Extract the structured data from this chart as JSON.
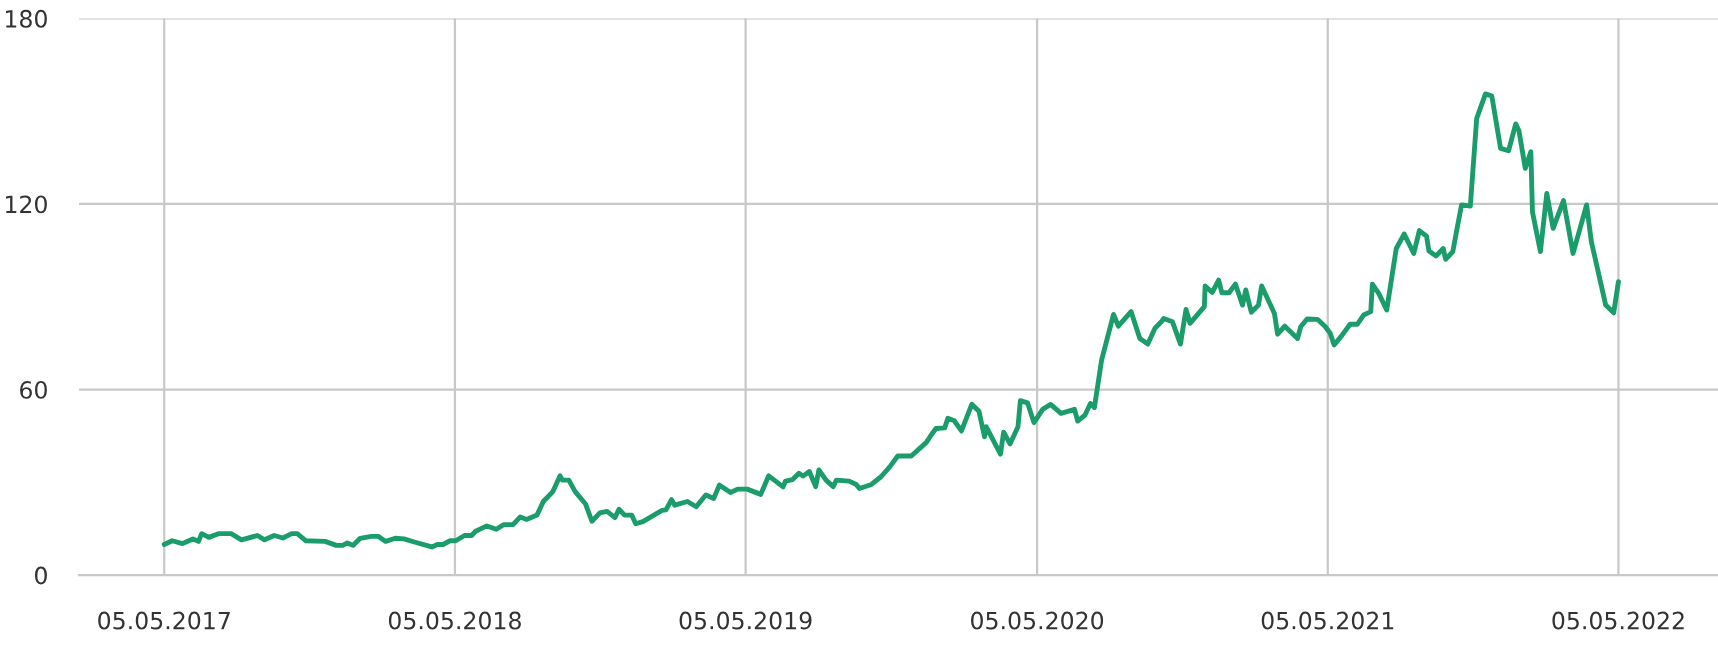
{
  "chart_data": {
    "type": "line",
    "xlim": [
      "2017-01-18",
      "2022-09-07"
    ],
    "ylim": [
      0,
      180
    ],
    "yticks": [
      0,
      60,
      120,
      180
    ],
    "xticks": [
      {
        "value": "2017-05-05",
        "label": "05.05.2017"
      },
      {
        "value": "2018-05-05",
        "label": "05.05.2018"
      },
      {
        "value": "2019-05-05",
        "label": "05.05.2019"
      },
      {
        "value": "2020-05-05",
        "label": "05.05.2020"
      },
      {
        "value": "2021-05-05",
        "label": "05.05.2021"
      },
      {
        "value": "2022-05-05",
        "label": "05.05.2022"
      }
    ],
    "grid": true,
    "marker": "none",
    "line_style": "solid",
    "series": [
      {
        "color": "#1a9c6b",
        "x": [
          "2017-05-05",
          "2017-05-15",
          "2017-05-28",
          "2017-06-10",
          "2017-06-17",
          "2017-06-21",
          "2017-06-30",
          "2017-07-12",
          "2017-07-28",
          "2017-08-10",
          "2017-08-30",
          "2017-09-08",
          "2017-09-20",
          "2017-10-01",
          "2017-10-12",
          "2017-10-19",
          "2017-10-30",
          "2017-11-23",
          "2017-12-07",
          "2017-12-15",
          "2017-12-21",
          "2017-12-28",
          "2018-01-06",
          "2018-01-20",
          "2018-01-29",
          "2018-02-07",
          "2018-02-19",
          "2018-03-02",
          "2018-03-15",
          "2018-04-06",
          "2018-04-13",
          "2018-04-20",
          "2018-04-29",
          "2018-05-06",
          "2018-05-17",
          "2018-05-26",
          "2018-05-31",
          "2018-06-14",
          "2018-06-26",
          "2018-07-05",
          "2018-07-17",
          "2018-07-26",
          "2018-08-03",
          "2018-08-16",
          "2018-08-24",
          "2018-09-05",
          "2018-09-14",
          "2018-09-17",
          "2018-09-25",
          "2018-10-03",
          "2018-10-16",
          "2018-10-24",
          "2018-11-03",
          "2018-11-12",
          "2018-11-22",
          "2018-11-27",
          "2018-12-04",
          "2018-12-13",
          "2018-12-18",
          "2018-12-27",
          "2019-01-20",
          "2019-01-25",
          "2019-02-01",
          "2019-02-05",
          "2019-02-21",
          "2019-03-04",
          "2019-03-16",
          "2019-03-26",
          "2019-04-02",
          "2019-04-16",
          "2019-04-25",
          "2019-05-07",
          "2019-05-24",
          "2019-06-03",
          "2019-06-21",
          "2019-06-24",
          "2019-07-03",
          "2019-07-11",
          "2019-07-16",
          "2019-07-24",
          "2019-08-01",
          "2019-08-05",
          "2019-08-14",
          "2019-08-23",
          "2019-08-27",
          "2019-09-12",
          "2019-09-21",
          "2019-09-25",
          "2019-10-10",
          "2019-10-22",
          "2019-11-02",
          "2019-11-12",
          "2019-11-29",
          "2019-12-18",
          "2019-12-24",
          "2019-12-30",
          "2020-01-10",
          "2020-01-14",
          "2020-01-22",
          "2020-01-31",
          "2020-02-13",
          "2020-02-22",
          "2020-02-29",
          "2020-03-02",
          "2020-03-20",
          "2020-03-24",
          "2020-04-01",
          "2020-04-11",
          "2020-04-14",
          "2020-04-23",
          "2020-05-01",
          "2020-05-12",
          "2020-05-22",
          "2020-06-04",
          "2020-06-21",
          "2020-06-25",
          "2020-07-04",
          "2020-07-11",
          "2020-07-16",
          "2020-07-25",
          "2020-08-09",
          "2020-08-15",
          "2020-08-31",
          "2020-09-11",
          "2020-09-21",
          "2020-09-30",
          "2020-10-08",
          "2020-10-11",
          "2020-10-22",
          "2020-11-01",
          "2020-11-08",
          "2020-11-13",
          "2020-12-01",
          "2020-12-02",
          "2020-12-11",
          "2020-12-19",
          "2020-12-23",
          "2021-01-01",
          "2021-01-09",
          "2021-01-18",
          "2021-01-22",
          "2021-01-29",
          "2021-02-07",
          "2021-02-11",
          "2021-02-27",
          "2021-03-03",
          "2021-03-12",
          "2021-03-28",
          "2021-04-01",
          "2021-04-09",
          "2021-04-22",
          "2021-05-02",
          "2021-05-08",
          "2021-05-13",
          "2021-05-23",
          "2021-06-02",
          "2021-06-11",
          "2021-06-19",
          "2021-06-28",
          "2021-06-30",
          "2021-07-08",
          "2021-07-18",
          "2021-07-30",
          "2021-08-09",
          "2021-08-21",
          "2021-08-28",
          "2021-09-06",
          "2021-09-09",
          "2021-09-18",
          "2021-09-27",
          "2021-09-30",
          "2021-10-09",
          "2021-10-14",
          "2021-10-20",
          "2021-10-31",
          "2021-11-08",
          "2021-11-19",
          "2021-11-27",
          "2021-12-08",
          "2021-12-18",
          "2021-12-27",
          "2021-12-31",
          "2022-01-08",
          "2022-01-15",
          "2022-01-17",
          "2022-01-27",
          "2022-02-04",
          "2022-02-12",
          "2022-02-25",
          "2022-03-09",
          "2022-03-26",
          "2022-04-01",
          "2022-04-19",
          "2022-04-29",
          "2022-05-05"
        ],
        "values": [
          9.9,
          11.1,
          10.2,
          11.7,
          10.9,
          13.4,
          12.2,
          13.4,
          13.4,
          11.4,
          12.8,
          11.4,
          12.8,
          12.0,
          13.4,
          13.4,
          11.1,
          10.9,
          9.6,
          9.6,
          10.4,
          9.6,
          11.9,
          12.5,
          12.5,
          10.9,
          11.9,
          11.7,
          10.7,
          9.1,
          9.9,
          9.9,
          11.1,
          11.1,
          12.8,
          12.8,
          14.2,
          15.9,
          14.8,
          16.3,
          16.3,
          18.8,
          18.0,
          19.4,
          23.8,
          27.0,
          32.1,
          30.7,
          30.7,
          27.0,
          23.0,
          17.4,
          20.1,
          20.6,
          18.6,
          21.3,
          19.4,
          19.4,
          16.6,
          17.3,
          20.9,
          21.1,
          24.4,
          22.6,
          23.8,
          22.1,
          25.9,
          24.8,
          29.1,
          26.7,
          27.8,
          27.8,
          26.1,
          32.1,
          28.5,
          30.4,
          30.9,
          32.9,
          32.0,
          33.5,
          28.6,
          34.0,
          30.7,
          28.6,
          30.7,
          30.4,
          29.3,
          28.0,
          29.3,
          31.8,
          35.0,
          38.5,
          38.5,
          42.9,
          45.3,
          47.4,
          47.6,
          50.7,
          49.9,
          46.6,
          55.2,
          53.0,
          44.7,
          48.0,
          39.1,
          46.2,
          42.4,
          48.0,
          56.4,
          55.7,
          49.3,
          53.6,
          55.2,
          52.3,
          53.6,
          49.8,
          51.7,
          55.5,
          54.2,
          69.5,
          84.3,
          80.5,
          85.2,
          76.5,
          74.7,
          79.8,
          81.9,
          83.0,
          81.9,
          74.7,
          85.9,
          81.4,
          86.8,
          93.5,
          91.4,
          95.4,
          91.3,
          91.3,
          94.1,
          87.3,
          92.2,
          85.0,
          87.3,
          93.5,
          84.6,
          77.9,
          80.5,
          76.5,
          80.3,
          82.8,
          82.7,
          80.3,
          78.2,
          74.4,
          77.6,
          81.1,
          81.1,
          84.1,
          85.2,
          94.1,
          91.1,
          85.7,
          105.6,
          110.3,
          104.0,
          111.4,
          109.6,
          104.8,
          103.2,
          105.6,
          102.1,
          104.6,
          111.6,
          119.7,
          119.3,
          147.7,
          155.6,
          154.9,
          138.0,
          137.2,
          145.9,
          143.7,
          131.5,
          136.9,
          117.5,
          104.6,
          123.4,
          112.1,
          121.1,
          104.0,
          119.7,
          107.8,
          87.3,
          84.8,
          94.9
        ]
      }
    ]
  }
}
